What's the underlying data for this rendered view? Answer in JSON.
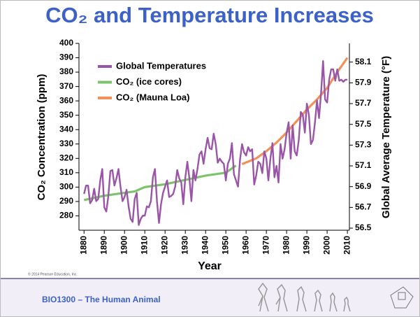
{
  "chart_data": {
    "type": "line",
    "title": "CO₂ and Temperature Increases",
    "x_label": "Year",
    "y_label": "CO₂ Concentration (ppm)",
    "y2_label": "Global Average Temperature (°F)",
    "source": "© 2014 Pearson Education, Inc.",
    "footer": "BIO1300 – The Human Animal",
    "xlim": [
      1877.5,
      2011
    ],
    "xticks": [
      1880,
      1890,
      1900,
      1910,
      1920,
      1930,
      1940,
      1950,
      1960,
      1970,
      1980,
      1990,
      2000,
      2010
    ],
    "ylim": [
      270,
      400
    ],
    "yticks": [
      280,
      290,
      300,
      310,
      320,
      330,
      340,
      350,
      360,
      370,
      380,
      390,
      400
    ],
    "y2lim": [
      56.48,
      58.28
    ],
    "y2ticks": [
      56.5,
      56.7,
      56.9,
      57.1,
      57.3,
      57.5,
      57.7,
      57.9,
      58.1
    ],
    "series": [
      {
        "name": "Global Temperatures",
        "color": "#9b55a8",
        "axis": "y2",
        "x": [
          1880,
          1881,
          1882,
          1883,
          1884,
          1885,
          1886,
          1887,
          1888,
          1889,
          1890,
          1891,
          1892,
          1893,
          1894,
          1895,
          1896,
          1897,
          1898,
          1899,
          1900,
          1901,
          1902,
          1903,
          1904,
          1905,
          1906,
          1907,
          1908,
          1909,
          1910,
          1911,
          1912,
          1913,
          1914,
          1915,
          1916,
          1917,
          1918,
          1919,
          1920,
          1921,
          1922,
          1923,
          1924,
          1925,
          1926,
          1927,
          1928,
          1929,
          1930,
          1931,
          1932,
          1933,
          1934,
          1935,
          1936,
          1937,
          1938,
          1939,
          1940,
          1941,
          1942,
          1943,
          1944,
          1945,
          1946,
          1947,
          1948,
          1949,
          1950,
          1951,
          1952,
          1953,
          1954,
          1955,
          1956,
          1957,
          1958,
          1959,
          1960,
          1961,
          1962,
          1963,
          1964,
          1965,
          1966,
          1967,
          1968,
          1969,
          1970,
          1971,
          1972,
          1973,
          1974,
          1975,
          1976,
          1977,
          1978,
          1979,
          1980,
          1981,
          1982,
          1983,
          1984,
          1985,
          1986,
          1987,
          1988,
          1989,
          1990,
          1991,
          1992,
          1993,
          1994,
          1995,
          1996,
          1997,
          1998,
          1999,
          2000,
          2001,
          2002,
          2003,
          2004,
          2005,
          2006,
          2007,
          2008,
          2009,
          2010
        ],
        "values": [
          56.83,
          56.91,
          56.91,
          56.74,
          56.77,
          56.88,
          56.76,
          56.78,
          56.96,
          57.07,
          56.7,
          56.66,
          56.81,
          57.05,
          57.06,
          56.91,
          56.98,
          57.07,
          56.9,
          56.76,
          56.8,
          56.87,
          56.71,
          56.59,
          56.56,
          56.78,
          56.84,
          56.53,
          56.59,
          56.62,
          56.62,
          56.71,
          56.7,
          56.76,
          56.99,
          57.07,
          56.76,
          56.55,
          56.73,
          56.84,
          56.9,
          56.96,
          56.8,
          56.81,
          56.83,
          56.9,
          57.06,
          56.98,
          56.94,
          56.73,
          56.99,
          57.14,
          56.98,
          56.76,
          57.06,
          56.96,
          57.07,
          57.21,
          57.24,
          57.12,
          57.26,
          57.37,
          57.27,
          57.26,
          57.41,
          57.31,
          57.13,
          57.17,
          57.14,
          57.12,
          56.96,
          57.12,
          57.17,
          57.32,
          57.02,
          56.96,
          56.9,
          57.16,
          57.31,
          57.23,
          57.2,
          57.28,
          57.24,
          57.26,
          56.92,
          57.01,
          57.14,
          57.12,
          57.03,
          57.24,
          57.17,
          56.96,
          57.17,
          57.32,
          56.99,
          57.1,
          56.94,
          57.31,
          57.17,
          57.26,
          57.42,
          57.52,
          57.17,
          57.49,
          57.24,
          57.2,
          57.35,
          57.62,
          57.59,
          57.42,
          57.7,
          57.59,
          57.31,
          57.35,
          57.52,
          57.73,
          57.56,
          57.8,
          58.11,
          57.74,
          57.71,
          57.93,
          58.03,
          58.03,
          57.92,
          58.03,
          57.92,
          57.93,
          57.91,
          57.93,
          57.93
        ]
      },
      {
        "name": "CO₂ (ice cores)",
        "color": "#7dc36b",
        "x": [
          1880,
          1890,
          1900,
          1905,
          1910,
          1920,
          1930,
          1940,
          1950,
          1955
        ],
        "values": [
          291,
          294,
          296,
          297,
          300,
          302,
          305,
          308,
          310,
          315
        ]
      },
      {
        "name": "CO₂ (Mauna Loa)",
        "color": "#f0915a",
        "x": [
          1958,
          1965,
          1970,
          1975,
          1980,
          1985,
          1990,
          1995,
          2000,
          2005,
          2010
        ],
        "values": [
          316,
          320,
          325,
          331,
          338,
          346,
          354,
          361,
          369,
          380,
          390
        ]
      }
    ]
  }
}
